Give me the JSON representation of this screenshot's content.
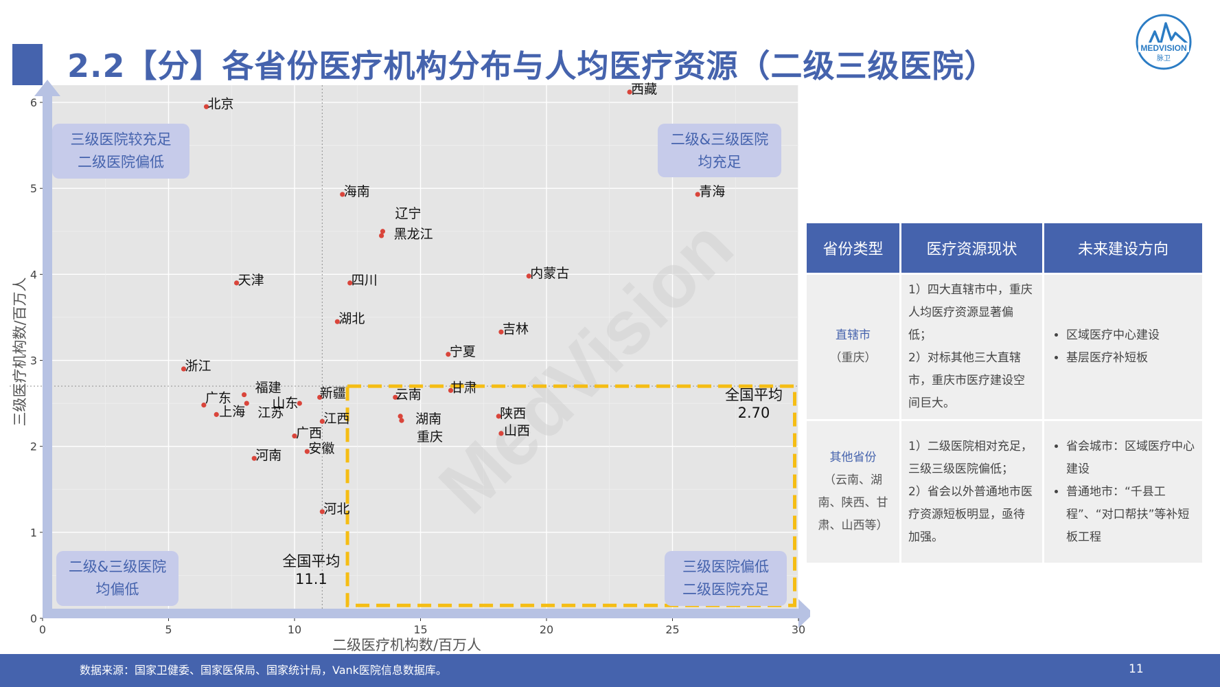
{
  "title": "2.2【分】各省份医疗机构分布与人均医疗资源（二级三级医院）",
  "logo": {
    "text": "MEDVISION",
    "sub": "脉卫"
  },
  "chart_data": {
    "type": "scatter",
    "xlabel": "二级医疗机构数/百万人",
    "ylabel": "三级医疗机构数/百万人",
    "xlim": [
      0,
      30
    ],
    "ylim": [
      0,
      6.2
    ],
    "xticks": [
      0,
      5,
      10,
      15,
      20,
      25,
      30
    ],
    "yticks": [
      0,
      1,
      2,
      3,
      4,
      5,
      6
    ],
    "grid": true,
    "watermark": "MedVision",
    "points": [
      {
        "name": "北京",
        "x": 6.5,
        "y": 5.95
      },
      {
        "name": "西藏",
        "x": 23.3,
        "y": 6.12
      },
      {
        "name": "海南",
        "x": 11.9,
        "y": 4.93
      },
      {
        "name": "青海",
        "x": 26.0,
        "y": 4.93
      },
      {
        "name": "辽宁",
        "x": 13.5,
        "y": 4.5
      },
      {
        "name": "黑龙江",
        "x": 13.45,
        "y": 4.45
      },
      {
        "name": "天津",
        "x": 7.7,
        "y": 3.9
      },
      {
        "name": "四川",
        "x": 12.2,
        "y": 3.9
      },
      {
        "name": "内蒙古",
        "x": 19.3,
        "y": 3.98
      },
      {
        "name": "湖北",
        "x": 11.7,
        "y": 3.45
      },
      {
        "name": "吉林",
        "x": 18.2,
        "y": 3.33
      },
      {
        "name": "宁夏",
        "x": 16.1,
        "y": 3.07
      },
      {
        "name": "浙江",
        "x": 5.6,
        "y": 2.9
      },
      {
        "name": "甘肃",
        "x": 16.2,
        "y": 2.65
      },
      {
        "name": "福建",
        "x": 8.0,
        "y": 2.6
      },
      {
        "name": "江苏",
        "x": 8.1,
        "y": 2.5
      },
      {
        "name": "广东",
        "x": 6.4,
        "y": 2.48
      },
      {
        "name": "上海",
        "x": 6.9,
        "y": 2.37
      },
      {
        "name": "山东",
        "x": 10.2,
        "y": 2.5
      },
      {
        "name": "新疆",
        "x": 11.0,
        "y": 2.57
      },
      {
        "name": "云南",
        "x": 14.0,
        "y": 2.57
      },
      {
        "name": "江西",
        "x": 11.1,
        "y": 2.29
      },
      {
        "name": "湖南",
        "x": 14.2,
        "y": 2.35
      },
      {
        "name": "重庆",
        "x": 14.25,
        "y": 2.3
      },
      {
        "name": "陕西",
        "x": 18.1,
        "y": 2.35
      },
      {
        "name": "山西",
        "x": 18.2,
        "y": 2.15
      },
      {
        "name": "广西",
        "x": 10.0,
        "y": 2.12
      },
      {
        "name": "安徽",
        "x": 10.5,
        "y": 1.94
      },
      {
        "name": "河南",
        "x": 8.4,
        "y": 1.86
      },
      {
        "name": "河北",
        "x": 11.1,
        "y": 1.24
      }
    ],
    "reference": {
      "x_avg": 11.1,
      "y_avg": 2.7,
      "x_label": "全国平均",
      "x_value": "11.1",
      "y_label": "全国平均",
      "y_value": "2.70"
    },
    "quadrants": [
      {
        "lines": [
          "三级医院较充足",
          "二级医院偏低"
        ],
        "corner": "top-left"
      },
      {
        "lines": [
          "二级&三级医院",
          "均充足"
        ],
        "corner": "top-right"
      },
      {
        "lines": [
          "二级&三级医院",
          "均偏低"
        ],
        "corner": "bottom-left"
      },
      {
        "lines": [
          "三级医院偏低",
          "二级医院充足"
        ],
        "corner": "bottom-right"
      }
    ]
  },
  "table": {
    "headers": [
      "省份类型",
      "医疗资源现状",
      "未来建设方向"
    ],
    "rows": [
      {
        "type": "直辖市",
        "type_sub": "（重庆）",
        "status": [
          "1）四大直辖市中，重庆人均医疗资源显著偏低；",
          "2）对标其他三大直辖市，重庆市医疗建设空间巨大。"
        ],
        "direction": [
          "区域医疗中心建设",
          "基层医疗补短板"
        ]
      },
      {
        "type": "其他省份",
        "type_sub": "（云南、湖南、陕西、甘肃、山西等）",
        "status": [
          "1）二级医院相对充足，三级三级医院偏低；",
          "2）省会以外普通地市医疗资源短板明显，亟待加强。"
        ],
        "direction": [
          "省会城市：区域医疗中心建设",
          "普通地市：“千县工程”、“对口帮扶”等补短板工程"
        ]
      }
    ]
  },
  "footer": {
    "source": "数据来源：国家卫健委、国家医保局、国家统计局，Vank医院信息数据库。",
    "page": "11"
  }
}
